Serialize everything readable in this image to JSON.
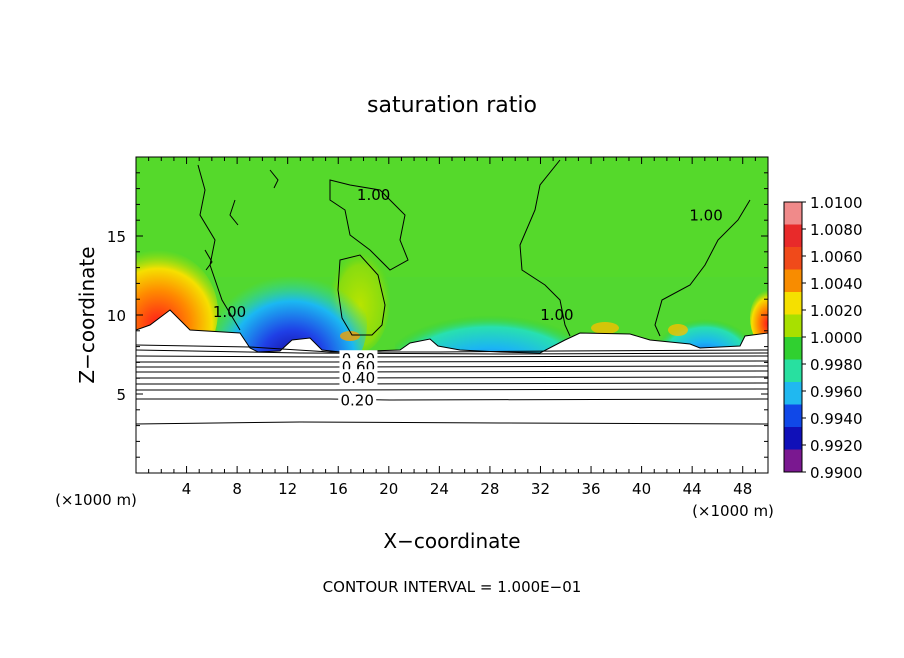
{
  "chart_data": {
    "type": "heatmap",
    "title": "saturation ratio",
    "xlabel": "X−coordinate",
    "ylabel": "Z−coordinate",
    "x_unit_left": "(×1000 m)",
    "x_unit_right": "(×1000 m)",
    "footer": "CONTOUR INTERVAL = 1.000E−01",
    "xlim": [
      0,
      50
    ],
    "ylim": [
      0,
      20
    ],
    "x_ticks": [
      4,
      8,
      12,
      16,
      20,
      24,
      28,
      32,
      36,
      40,
      44,
      48
    ],
    "y_ticks": [
      5,
      10,
      15
    ],
    "colorbar": {
      "ticks": [
        "1.0100",
        "1.0080",
        "1.0060",
        "1.0040",
        "1.0020",
        "1.0000",
        "0.9980",
        "0.9960",
        "0.9940",
        "0.9920",
        "0.9900"
      ],
      "colors": [
        "#f08a8a",
        "#e82a2a",
        "#f04a1a",
        "#f88c00",
        "#f5e000",
        "#a8e000",
        "#30d030",
        "#28e0a0",
        "#20b8f0",
        "#1048e8",
        "#1010b8",
        "#7a1890"
      ]
    },
    "contour_labels": [
      {
        "text": "1.00",
        "x": 18.8,
        "y": 17.6
      },
      {
        "text": "1.00",
        "x": 7.4,
        "y": 10.2
      },
      {
        "text": "1.00",
        "x": 33.3,
        "y": 10.0
      },
      {
        "text": "1.00",
        "x": 45.1,
        "y": 16.3
      },
      {
        "text": "0.80",
        "x": 17.6,
        "y": 7.2
      },
      {
        "text": "0.60",
        "x": 17.6,
        "y": 6.7
      },
      {
        "text": "0.40",
        "x": 17.6,
        "y": 6.0
      },
      {
        "text": "0.20",
        "x": 17.5,
        "y": 4.6
      }
    ]
  }
}
